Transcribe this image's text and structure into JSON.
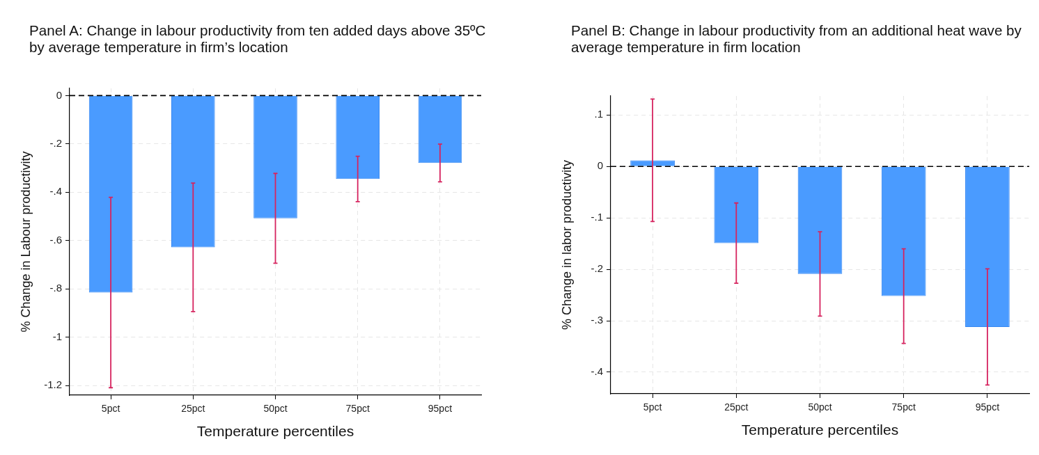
{
  "chart_data": [
    {
      "type": "bar",
      "title": "Panel A: Change in labour productivity from ten added days above 35ºC by average temperature in firm’s location",
      "xlabel": "Temperature percentiles",
      "ylabel": "% Change in Labour productivity",
      "categories": [
        "5pct",
        "25pct",
        "50pct",
        "75pct",
        "95pct"
      ],
      "values": [
        -0.815,
        -0.628,
        -0.508,
        -0.345,
        -0.279
      ],
      "errors": [
        0.394,
        0.266,
        0.186,
        0.094,
        0.078
      ],
      "color": "#4a9bff",
      "ylim": [
        -1.24,
        0.03
      ],
      "yticks": [
        0,
        {
          "value": -0.2,
          "label": "-.2"
        },
        {
          "value": -0.4,
          "label": "-.4"
        },
        {
          "value": -0.6,
          "label": "-.6"
        },
        {
          "value": -0.8,
          "label": "-.8"
        },
        -1,
        -1.2
      ],
      "grid": true,
      "ref_lines": [
        {
          "axis": "y",
          "value": 0,
          "color": "#000000",
          "line_style": "dashed"
        }
      ]
    },
    {
      "type": "bar",
      "title": "Panel B: Change in labour productivity from an additional heat wave by average temperature in firm location",
      "xlabel": "Temperature percentiles",
      "ylabel": "% Change in labor productivity",
      "categories": [
        "5pct",
        "25pct",
        "50pct",
        "75pct",
        "95pct"
      ],
      "values": [
        0.012,
        -0.149,
        -0.209,
        -0.252,
        -0.312
      ],
      "errors": [
        0.119,
        0.078,
        0.082,
        0.092,
        0.113
      ],
      "color": "#4a9bff",
      "ylim": [
        -0.442,
        0.137
      ],
      "yticks": [
        {
          "value": 0.1,
          "label": ".1"
        },
        0,
        {
          "value": -0.1,
          "label": "-.1"
        },
        {
          "value": -0.2,
          "label": "-.2"
        },
        {
          "value": -0.3,
          "label": "-.3"
        },
        {
          "value": -0.4,
          "label": "-.4"
        }
      ],
      "grid": true,
      "ref_lines": [
        {
          "axis": "y",
          "value": 0,
          "color": "#000000",
          "line_style": "dashed"
        }
      ]
    }
  ]
}
